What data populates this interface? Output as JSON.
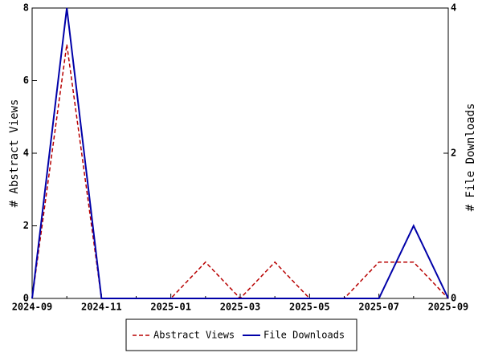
{
  "chart_data": {
    "type": "line",
    "categories": [
      "2024-09",
      null,
      "2024-11",
      null,
      "2025-01",
      null,
      "2025-03",
      null,
      "2025-05",
      null,
      "2025-07",
      null,
      "2025-09"
    ],
    "y_label": "# Abstract Views",
    "y2_label": "# File Downloads",
    "series": [
      {
        "name": "Abstract Views",
        "color": "#b80000",
        "dashed": true,
        "values": [
          0,
          7,
          0,
          0,
          0,
          1,
          0,
          1,
          0,
          0,
          1,
          1,
          0
        ]
      },
      {
        "name": "File Downloads",
        "color": "#0000a8",
        "dashed": false,
        "axis": "y2",
        "values": [
          0,
          4,
          0,
          0,
          0,
          0,
          0,
          0,
          0,
          0,
          0,
          1,
          0
        ]
      }
    ],
    "ylim": [
      0,
      8
    ],
    "yticks": [
      0,
      2,
      4,
      6,
      8
    ],
    "y2lim": [
      0,
      4
    ],
    "y2ticks": [
      0,
      2,
      4
    ],
    "legend": "bottom"
  }
}
